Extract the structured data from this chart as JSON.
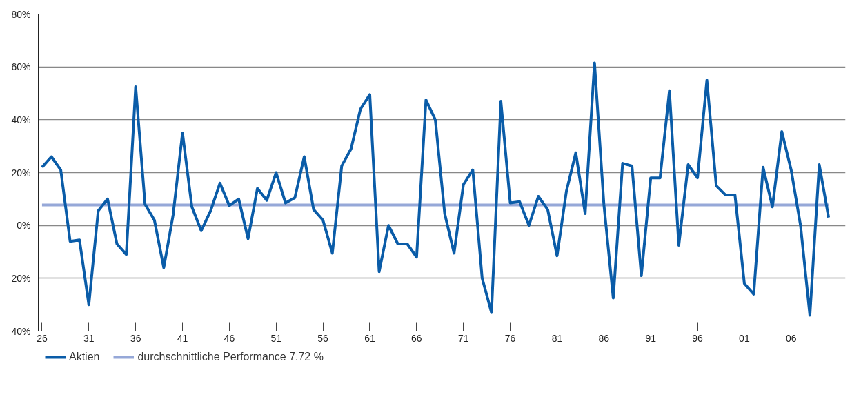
{
  "chart_data": {
    "type": "line",
    "series": [
      {
        "name": "Aktien",
        "color": "#0a5ca8",
        "x": [
          1926,
          1927,
          1928,
          1929,
          1930,
          1931,
          1932,
          1933,
          1934,
          1935,
          1936,
          1937,
          1938,
          1939,
          1940,
          1941,
          1942,
          1943,
          1944,
          1945,
          1946,
          1947,
          1948,
          1949,
          1950,
          1951,
          1952,
          1953,
          1954,
          1955,
          1956,
          1957,
          1958,
          1959,
          1960,
          1961,
          1962,
          1963,
          1964,
          1965,
          1966,
          1967,
          1968,
          1969,
          1970,
          1971,
          1972,
          1973,
          1974,
          1975,
          1976,
          1977,
          1978,
          1979,
          1980,
          1981,
          1982,
          1983,
          1984,
          1985,
          1986,
          1987,
          1988,
          1989,
          1990,
          1991,
          1992,
          1993,
          1994,
          1995,
          1996,
          1997,
          1998,
          1999,
          2000,
          2001,
          2002,
          2003,
          2004,
          2005,
          2006,
          2007,
          2008,
          2009,
          2010
        ],
        "values": [
          22,
          26,
          21,
          -6,
          -5.5,
          -30,
          5.5,
          10,
          -7,
          -11,
          52.5,
          8,
          2,
          -16,
          4,
          35,
          7,
          -2,
          5.5,
          16,
          7.5,
          10,
          -5,
          14,
          9.5,
          20,
          8.5,
          10.5,
          26,
          6,
          2,
          -10.5,
          22.5,
          29,
          44,
          49.5,
          -17.5,
          0,
          -7,
          -7,
          -12,
          47.5,
          40,
          4.5,
          -10.5,
          15.5,
          21,
          -20,
          -33,
          47,
          8.5,
          9,
          0,
          11,
          6,
          -11.5,
          13,
          27.5,
          4.5,
          61.5,
          8,
          -27.5,
          23.5,
          22.5,
          -19,
          18,
          18,
          51,
          -7.5,
          23,
          18,
          55,
          15,
          11.5,
          11.5,
          -22,
          -26,
          22,
          7,
          35.5,
          21,
          0,
          -34,
          23,
          3
        ]
      },
      {
        "name": "durchschnittliche Performance 7.72 %",
        "color": "#96a8d8",
        "x": [
          1926,
          2010
        ],
        "values": [
          7.72,
          7.72
        ]
      }
    ],
    "xlim": [
      1925.6,
      2011.8
    ],
    "xticks": [
      {
        "value": 1926,
        "label": "26"
      },
      {
        "value": 1931,
        "label": "31"
      },
      {
        "value": 1936,
        "label": "36"
      },
      {
        "value": 1941,
        "label": "41"
      },
      {
        "value": 1946,
        "label": "46"
      },
      {
        "value": 1951,
        "label": "51"
      },
      {
        "value": 1956,
        "label": "56"
      },
      {
        "value": 1961,
        "label": "61"
      },
      {
        "value": 1966,
        "label": "66"
      },
      {
        "value": 1971,
        "label": "71"
      },
      {
        "value": 1976,
        "label": "76"
      },
      {
        "value": 1981,
        "label": "81"
      },
      {
        "value": 1986,
        "label": "86"
      },
      {
        "value": 1991,
        "label": "91"
      },
      {
        "value": 1996,
        "label": "96"
      },
      {
        "value": 2001,
        "label": "01"
      },
      {
        "value": 2006,
        "label": "06"
      }
    ],
    "ylim": [
      -40,
      80
    ],
    "yticks": [
      {
        "value": -40,
        "label": "40%"
      },
      {
        "value": -20,
        "label": "20%"
      },
      {
        "value": 0,
        "label": "0%"
      },
      {
        "value": 20,
        "label": "20%"
      },
      {
        "value": 40,
        "label": "40%"
      },
      {
        "value": 60,
        "label": "60%"
      },
      {
        "value": 80,
        "label": "80%"
      }
    ],
    "grid": "y",
    "legend": "bottom left",
    "line_style": "solid"
  }
}
